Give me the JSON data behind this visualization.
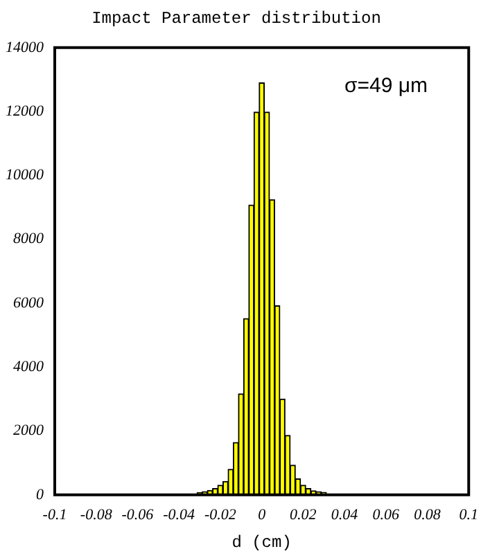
{
  "chart_data": {
    "type": "histogram",
    "title": "Impact Parameter distribution",
    "xlabel": "d (cm)",
    "bins": [
      -0.03125,
      -0.02875,
      -0.02625,
      -0.02375,
      -0.02125,
      -0.01875,
      -0.01625,
      -0.01375,
      -0.01125,
      -0.00875,
      -0.00625,
      -0.00375,
      -0.00125,
      0.00125,
      0.00375,
      0.00625,
      0.00875,
      0.01125,
      0.01375,
      0.01625,
      0.01875,
      0.02125,
      0.02375,
      0.02625,
      0.02875,
      0.03125
    ],
    "values": [
      70,
      100,
      140,
      200,
      300,
      420,
      800,
      1640,
      3160,
      5520,
      9070,
      11980,
      12900,
      11980,
      9240,
      5920,
      3000,
      1860,
      930,
      500,
      300,
      200,
      130,
      100,
      80
    ],
    "color": "#ffff00",
    "xlim": [
      -0.1,
      0.1
    ],
    "xticks": [
      -0.1,
      -0.08,
      -0.06,
      -0.04,
      -0.02,
      0,
      0.02,
      0.04,
      0.06,
      0.08,
      0.1
    ],
    "ylim": [
      0,
      14000
    ],
    "yticks": [
      0,
      2000,
      4000,
      6000,
      8000,
      10000,
      12000,
      14000
    ],
    "grid": false,
    "legend": false,
    "annotations": [
      "σ=49 μm"
    ]
  }
}
